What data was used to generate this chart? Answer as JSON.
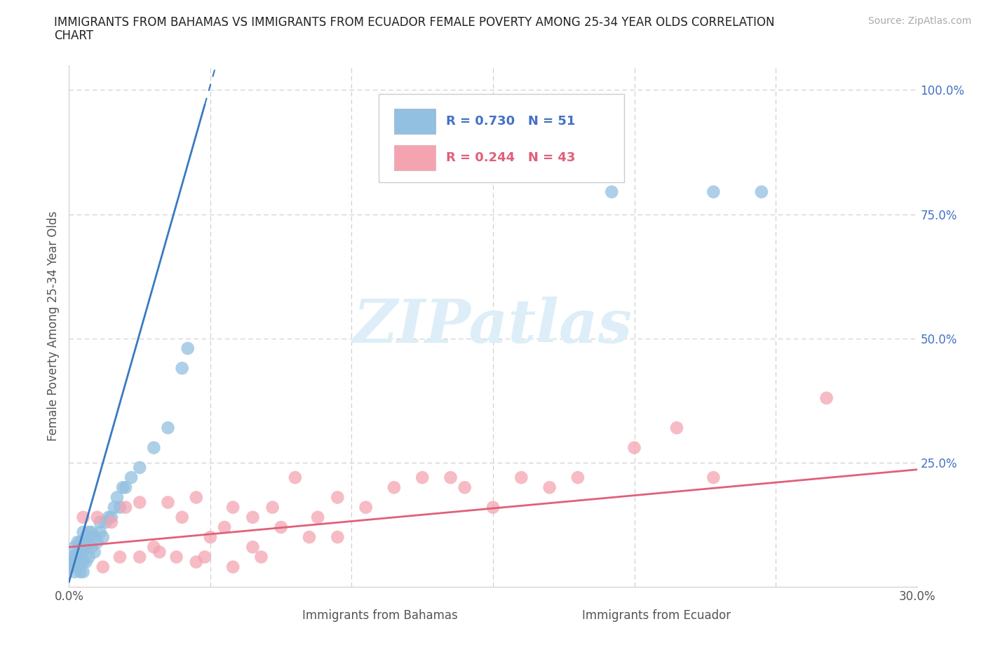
{
  "title_line1": "IMMIGRANTS FROM BAHAMAS VS IMMIGRANTS FROM ECUADOR FEMALE POVERTY AMONG 25-34 YEAR OLDS CORRELATION",
  "title_line2": "CHART",
  "source_text": "Source: ZipAtlas.com",
  "ylabel": "Female Poverty Among 25-34 Year Olds",
  "xlim": [
    0.0,
    0.3
  ],
  "ylim": [
    0.0,
    1.05
  ],
  "blue_color": "#92c0e0",
  "pink_color": "#f4a4b0",
  "blue_line_color": "#3a7abf",
  "pink_line_color": "#e0607a",
  "ytick_color": "#4472c4",
  "xtick_color": "#555555",
  "grid_color": "#cccccc",
  "watermark_color": "#ddeef8",
  "bahamas_x": [
    0.001,
    0.001,
    0.001,
    0.002,
    0.002,
    0.002,
    0.002,
    0.003,
    0.003,
    0.003,
    0.003,
    0.004,
    0.004,
    0.004,
    0.004,
    0.005,
    0.005,
    0.005,
    0.005,
    0.005,
    0.006,
    0.006,
    0.006,
    0.007,
    0.007,
    0.007,
    0.008,
    0.008,
    0.009,
    0.009,
    0.01,
    0.011,
    0.011,
    0.012,
    0.013,
    0.014,
    0.015,
    0.016,
    0.017,
    0.018,
    0.019,
    0.02,
    0.022,
    0.025,
    0.03,
    0.035,
    0.04,
    0.042,
    0.192,
    0.228,
    0.245
  ],
  "bahamas_y": [
    0.04,
    0.05,
    0.06,
    0.03,
    0.05,
    0.06,
    0.08,
    0.04,
    0.06,
    0.07,
    0.09,
    0.03,
    0.05,
    0.07,
    0.09,
    0.03,
    0.05,
    0.07,
    0.09,
    0.11,
    0.05,
    0.08,
    0.1,
    0.06,
    0.09,
    0.11,
    0.08,
    0.11,
    0.07,
    0.1,
    0.09,
    0.11,
    0.13,
    0.1,
    0.13,
    0.14,
    0.14,
    0.16,
    0.18,
    0.16,
    0.2,
    0.2,
    0.22,
    0.24,
    0.28,
    0.32,
    0.44,
    0.48,
    0.795,
    0.795,
    0.795
  ],
  "ecuador_x": [
    0.005,
    0.01,
    0.015,
    0.02,
    0.025,
    0.03,
    0.035,
    0.04,
    0.045,
    0.05,
    0.058,
    0.065,
    0.072,
    0.08,
    0.088,
    0.095,
    0.105,
    0.115,
    0.125,
    0.135,
    0.045,
    0.055,
    0.065,
    0.075,
    0.085,
    0.095,
    0.012,
    0.018,
    0.025,
    0.032,
    0.14,
    0.15,
    0.16,
    0.17,
    0.18,
    0.2,
    0.215,
    0.228,
    0.268,
    0.038,
    0.048,
    0.058,
    0.068
  ],
  "ecuador_y": [
    0.14,
    0.14,
    0.13,
    0.16,
    0.17,
    0.08,
    0.17,
    0.14,
    0.18,
    0.1,
    0.16,
    0.14,
    0.16,
    0.22,
    0.14,
    0.18,
    0.16,
    0.2,
    0.22,
    0.22,
    0.05,
    0.12,
    0.08,
    0.12,
    0.1,
    0.1,
    0.04,
    0.06,
    0.06,
    0.07,
    0.2,
    0.16,
    0.22,
    0.2,
    0.22,
    0.28,
    0.32,
    0.22,
    0.38,
    0.06,
    0.06,
    0.04,
    0.06
  ],
  "blue_trend_x0": 0.0,
  "blue_trend_y0": 0.01,
  "blue_trend_slope": 20.0,
  "pink_trend_x0": 0.0,
  "pink_trend_y0": 0.08,
  "pink_trend_slope": 0.52
}
